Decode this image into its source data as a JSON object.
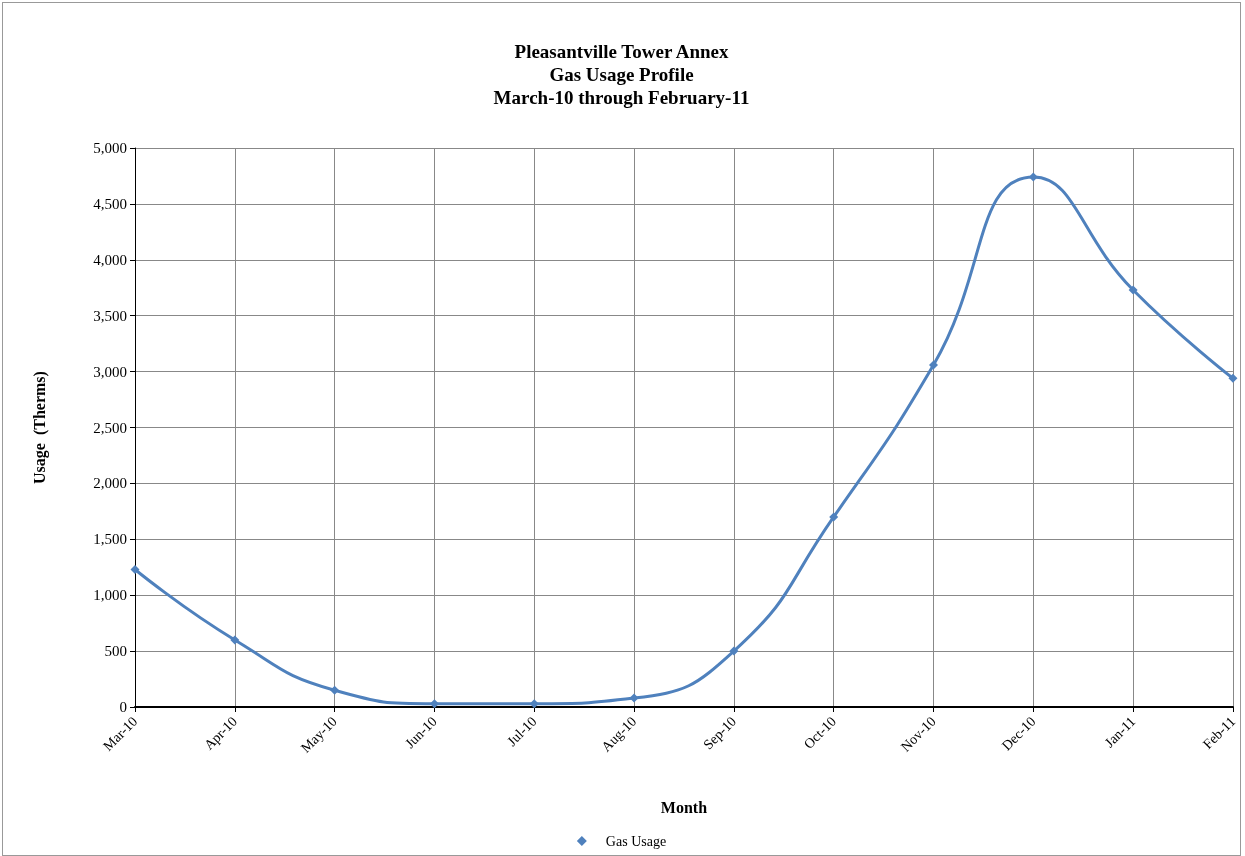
{
  "chart_data": {
    "type": "line",
    "title": "Pleasantville Tower Annex\nGas Usage Profile\nMarch-10 through February-11",
    "xlabel": "Month",
    "ylabel": "Usage  (Therms)",
    "categories": [
      "Mar-10",
      "Apr-10",
      "May-10",
      "Jun-10",
      "Jul-10",
      "Aug-10",
      "Sep-10",
      "Oct-10",
      "Nov-10",
      "Dec-10",
      "Jan-11",
      "Feb-11"
    ],
    "series": [
      {
        "name": "Gas Usage",
        "color": "#4f81bd",
        "values": [
          1230,
          600,
          150,
          30,
          30,
          80,
          500,
          1700,
          3060,
          4740,
          3730,
          2940
        ]
      }
    ],
    "ylim": [
      0,
      5000
    ],
    "yticks": [
      0,
      500,
      {
        "value": 1000,
        "label": "1,000"
      },
      {
        "value": 1500,
        "label": "1,500"
      },
      {
        "value": 2000,
        "label": "2,000"
      },
      {
        "value": 2500,
        "label": "2,500"
      },
      {
        "value": 3000,
        "label": "3,000"
      },
      {
        "value": 3500,
        "label": "3,500"
      },
      {
        "value": 4000,
        "label": "4,000"
      },
      {
        "value": 4500,
        "label": "4,500"
      },
      {
        "value": 5000,
        "label": "5,000"
      }
    ],
    "grid": true,
    "legend": "bottom",
    "marker": "diamond",
    "line_style": "solid"
  }
}
